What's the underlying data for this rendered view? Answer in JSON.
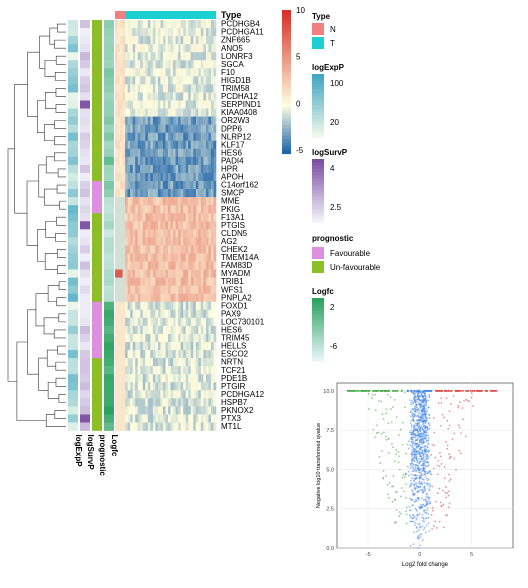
{
  "chart_data": [
    {
      "type": "heatmap",
      "rows": [
        "PCDHGB4",
        "PCDHGA11",
        "ZNF665",
        "ANO5",
        "LONRF3",
        "SGCA",
        "F10",
        "HIGD1B",
        "TRIM58",
        "PCDHA12",
        "SERPIND1",
        "KIAA0408",
        "OR2W3",
        "DPP6",
        "NLRP12",
        "KLF17",
        "HES6",
        "PADI4",
        "HPR",
        "APOH",
        "C14orf162",
        "SMCP",
        "MME",
        "PKIG",
        "F13A1",
        "PTGIS",
        "CLDN5",
        "AG2",
        "CHEK2",
        "TMEM14A",
        "FAM83D",
        "MYADM",
        "TRIB1",
        "WFS1",
        "PNPLA2",
        "FOXD1",
        "PAX9",
        "LOC730101",
        "HES6",
        "TRIM45",
        "HELLS",
        "ESCO2",
        "NRTN",
        "TCF21",
        "PDE1B",
        "PTGIR",
        "PCDHGA12",
        "HSPB7",
        "PKNOX2",
        "PTX3",
        "MT1L"
      ],
      "column_annotations": [
        {
          "name": "Type",
          "levels": [
            {
              "label": "N",
              "color": "#f08080"
            },
            {
              "label": "T",
              "color": "#1ccfd0"
            }
          ]
        }
      ],
      "row_annotation_labels": [
        "logExpP",
        "logSurvP",
        "prognostic",
        "Logfc"
      ],
      "color_scale": {
        "title": "",
        "ticks": [
          "10",
          "5",
          "0",
          "-5"
        ],
        "low": "#2166ac",
        "mid": "#ffffe0",
        "high": "#d73027"
      },
      "legends": [
        {
          "title": "logExpP",
          "ticks": [
            "100",
            "20"
          ],
          "low": "#edf8e9",
          "high": "#41a6c4"
        },
        {
          "title": "logSurvP",
          "ticks": [
            "4",
            "2.5"
          ],
          "low": "#f1f2f8",
          "high": "#7b4ea3"
        },
        {
          "title": "prognostic",
          "items": [
            {
              "label": "Favourable",
              "color": "#dd8fe0"
            },
            {
              "label": "Un-favourable",
              "color": "#8cbf26"
            }
          ]
        },
        {
          "title": "Logfc",
          "ticks": [
            "2",
            "-6"
          ],
          "low": "#e5f5f9",
          "high": "#2ca25f"
        }
      ]
    },
    {
      "type": "scatter",
      "title": "",
      "xlabel": "Log2 fold change",
      "ylabel": "Negative log10 transformed qvalue",
      "xlim": [
        -8,
        9
      ],
      "ylim": [
        0,
        10.5
      ],
      "x_ticks": [
        "-5",
        "0",
        "5"
      ],
      "y_ticks": [
        "0.0",
        "2.5",
        "5.0",
        "7.5",
        "10.0"
      ],
      "series": [
        {
          "color": "#4a89e8",
          "description_values": [
            [
              -0.5,
              0.2
            ],
            [
              0.4,
              0.5
            ],
            [
              -1.0,
              1.5
            ],
            [
              1.2,
              2.0
            ],
            [
              0.0,
              3.0
            ],
            [
              -0.3,
              5.0
            ],
            [
              0.5,
              6.5
            ],
            [
              -0.2,
              8.0
            ],
            [
              0.1,
              9.5
            ],
            [
              -0.4,
              10.0
            ]
          ]
        },
        {
          "color": "#d9534f",
          "description_values": [
            [
              1.5,
              2.5
            ],
            [
              2.3,
              4.0
            ],
            [
              3.0,
              6.0
            ],
            [
              4.0,
              8.5
            ],
            [
              5.5,
              10.0
            ],
            [
              7.0,
              10.0
            ]
          ]
        },
        {
          "color": "#4cae4c",
          "description_values": [
            [
              -1.5,
              2.5
            ],
            [
              -2.3,
              4.0
            ],
            [
              -3.0,
              5.5
            ],
            [
              -4.0,
              7.0
            ],
            [
              -5.5,
              10.0
            ],
            [
              -7.0,
              10.0
            ]
          ]
        }
      ]
    }
  ]
}
